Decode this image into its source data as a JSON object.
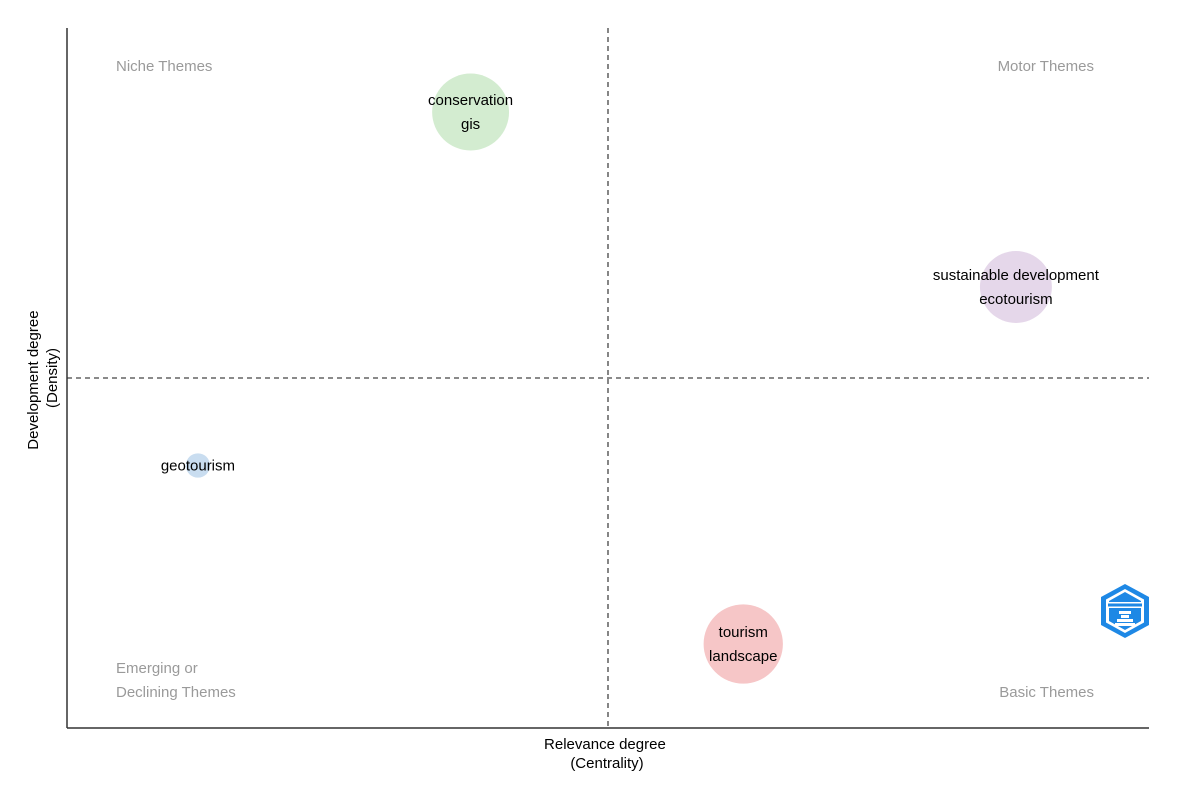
{
  "chart_data": {
    "type": "scatter",
    "xlabel": [
      "Relevance degree",
      "(Centrality)"
    ],
    "ylabel": [
      "Development degree",
      "(Density)"
    ],
    "quadrant_labels": {
      "top_left": [
        "Niche Themes"
      ],
      "top_right": [
        "Motor Themes"
      ],
      "bottom_left": [
        "Emerging or",
        "Declining Themes"
      ],
      "bottom_right": [
        "Basic Themes"
      ]
    },
    "divider_lines": "dashed",
    "grid": false,
    "xlim": [
      0,
      1
    ],
    "ylim": [
      0,
      1
    ],
    "x_divider": 0.5,
    "y_divider": 0.5,
    "points": [
      {
        "labels": [
          "conservation",
          "gis"
        ],
        "x": 0.373,
        "y": 0.88,
        "size": 0.8,
        "color": "#d3ecd0"
      },
      {
        "labels": [
          "sustainable development",
          "ecotourism"
        ],
        "x": 0.877,
        "y": 0.63,
        "size": 0.7,
        "color": "#e5d7ea"
      },
      {
        "labels": [
          "geotourism"
        ],
        "x": 0.121,
        "y": 0.375,
        "size": 0.08,
        "color": "#c9ddf0"
      },
      {
        "labels": [
          "tourism",
          "landscape"
        ],
        "x": 0.625,
        "y": 0.12,
        "size": 0.85,
        "color": "#f6c6c7"
      }
    ]
  },
  "colors": {
    "axis": "#333333",
    "divider": "#444444",
    "quadrant_text": "#9a9a9a",
    "logo_blue": "#1e88e5"
  }
}
